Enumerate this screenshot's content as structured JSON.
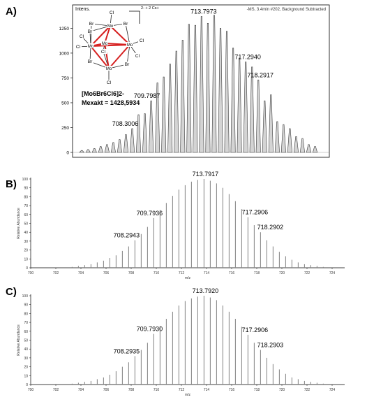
{
  "chart_data": [
    {
      "panel": "A)",
      "type": "bar",
      "ylabel": "Intens.",
      "header": "-MS, 3.4min #202, Background Subtracted",
      "inset_charge": "2- + 2 Cs+",
      "formula": "[Mo6Br6Cl6]2-",
      "mass_label": "Mexakt = 1428,5934",
      "yticks": [
        0,
        250,
        500,
        750,
        1000,
        1250
      ],
      "ylim": [
        0,
        1450
      ],
      "xlim": [
        703.9,
        723.6
      ],
      "peaks_x": [
        704.3,
        704.8,
        705.3,
        705.8,
        706.3,
        706.8,
        707.3,
        707.8,
        708.3,
        708.8,
        709.3,
        709.8,
        710.3,
        710.8,
        711.3,
        711.8,
        712.3,
        712.8,
        713.3,
        713.8,
        714.3,
        714.8,
        715.3,
        715.8,
        716.3,
        716.8,
        717.3,
        717.8,
        718.3,
        718.8,
        719.3,
        719.8,
        720.3,
        720.8,
        721.3,
        721.8,
        722.3,
        722.8
      ],
      "peaks_y": [
        20,
        30,
        40,
        60,
        80,
        100,
        130,
        180,
        240,
        380,
        390,
        520,
        700,
        760,
        890,
        1020,
        1130,
        1290,
        1280,
        1370,
        1300,
        1380,
        1250,
        1220,
        1050,
        950,
        910,
        860,
        730,
        520,
        580,
        310,
        280,
        240,
        160,
        140,
        80,
        60
      ],
      "labels": [
        {
          "text": "708.3006",
          "x": 708.3
        },
        {
          "text": "709.7987",
          "x": 709.8
        },
        {
          "text": "713.7973",
          "x": 713.8
        },
        {
          "text": "717.2940",
          "x": 717.3
        },
        {
          "text": "718.2917",
          "x": 718.3
        }
      ],
      "peaks_fill": "#d4d4d4"
    },
    {
      "panel": "B)",
      "type": "bar",
      "ylabel": "Relative Abundance",
      "xlabel": "m/z",
      "xticks": [
        700,
        702,
        704,
        706,
        708,
        710,
        712,
        714,
        716,
        718,
        720,
        722,
        724
      ],
      "yticks": [
        0,
        10,
        20,
        30,
        40,
        50,
        60,
        70,
        80,
        90,
        100
      ],
      "xlim": [
        700,
        725
      ],
      "ylim": [
        0,
        100
      ],
      "peaks_x": [
        703.3,
        703.8,
        704.3,
        704.8,
        705.3,
        705.8,
        706.3,
        706.8,
        707.3,
        707.8,
        708.3,
        708.8,
        709.3,
        709.8,
        710.3,
        710.8,
        711.3,
        711.8,
        712.3,
        712.8,
        713.3,
        713.8,
        714.3,
        714.8,
        715.3,
        715.8,
        716.3,
        716.8,
        717.3,
        717.8,
        718.3,
        718.8,
        719.3,
        719.8,
        720.3,
        720.8,
        721.3,
        721.8,
        722.3,
        722.8,
        723.3
      ],
      "peaks_y": [
        1,
        2,
        3,
        4,
        6,
        8,
        11,
        14,
        19,
        24,
        31,
        38,
        46,
        56,
        65,
        73,
        81,
        88,
        93,
        97,
        99,
        100,
        98,
        95,
        90,
        83,
        75,
        66,
        57,
        48,
        40,
        31,
        24,
        18,
        13,
        9,
        6,
        4,
        3,
        2,
        1
      ],
      "labels": [
        {
          "text": "708.2943",
          "x": 708.3
        },
        {
          "text": "709.7936",
          "x": 709.8
        },
        {
          "text": "713.7917",
          "x": 713.8
        },
        {
          "text": "717.2906",
          "x": 717.3
        },
        {
          "text": "718.2902",
          "x": 718.3
        }
      ]
    },
    {
      "panel": "C)",
      "type": "bar",
      "ylabel": "Relative Abundance",
      "xlabel": "m/z",
      "xticks": [
        700,
        702,
        704,
        706,
        708,
        710,
        712,
        714,
        716,
        718,
        720,
        722,
        724
      ],
      "yticks": [
        0,
        10,
        20,
        30,
        40,
        50,
        60,
        70,
        80,
        90,
        100
      ],
      "xlim": [
        700,
        725
      ],
      "ylim": [
        0,
        100
      ],
      "peaks_x": [
        703.3,
        703.8,
        704.3,
        704.8,
        705.3,
        705.8,
        706.3,
        706.8,
        707.3,
        707.8,
        708.3,
        708.8,
        709.3,
        709.8,
        710.3,
        710.8,
        711.3,
        711.8,
        712.3,
        712.8,
        713.3,
        713.8,
        714.3,
        714.8,
        715.3,
        715.8,
        716.3,
        716.8,
        717.3,
        717.8,
        718.3,
        718.8,
        719.3,
        719.8,
        720.3,
        720.8,
        721.3,
        721.8,
        722.3,
        722.8,
        723.3
      ],
      "peaks_y": [
        1,
        2,
        3,
        4,
        6,
        8,
        11,
        15,
        20,
        25,
        32,
        39,
        47,
        57,
        66,
        74,
        82,
        89,
        94,
        97,
        99,
        100,
        98,
        95,
        89,
        82,
        74,
        65,
        56,
        47,
        39,
        30,
        23,
        17,
        12,
        8,
        6,
        4,
        3,
        2,
        1
      ],
      "labels": [
        {
          "text": "708.2935",
          "x": 708.3
        },
        {
          "text": "709.7930",
          "x": 709.8
        },
        {
          "text": "713.7920",
          "x": 713.8
        },
        {
          "text": "717.2906",
          "x": 717.3
        },
        {
          "text": "718.2903",
          "x": 718.3
        }
      ]
    }
  ],
  "structure": {
    "atoms": [
      {
        "el": "Cl",
        "id": "cl-top"
      },
      {
        "el": "Br",
        "id": "br-tl"
      },
      {
        "el": "Mo",
        "id": "mo-top"
      },
      {
        "el": "Br",
        "id": "br-tr"
      },
      {
        "el": "Br",
        "id": "br-l"
      },
      {
        "el": "Cl",
        "id": "cl-l1"
      },
      {
        "el": "Mo",
        "id": "mo-left"
      },
      {
        "el": "Mo",
        "id": "mo-center"
      },
      {
        "el": "Cl",
        "id": "cl-c"
      },
      {
        "el": "Mo",
        "id": "mo-right"
      },
      {
        "el": "Cl",
        "id": "cl-r"
      },
      {
        "el": "Cl",
        "id": "cl-l2"
      },
      {
        "el": "Cl",
        "id": "cl-r2"
      },
      {
        "el": "Br",
        "id": "br-bl"
      },
      {
        "el": "Mo",
        "id": "mo-bottom"
      },
      {
        "el": "Br",
        "id": "br-br"
      },
      {
        "el": "Cl",
        "id": "cl-bot"
      }
    ]
  }
}
